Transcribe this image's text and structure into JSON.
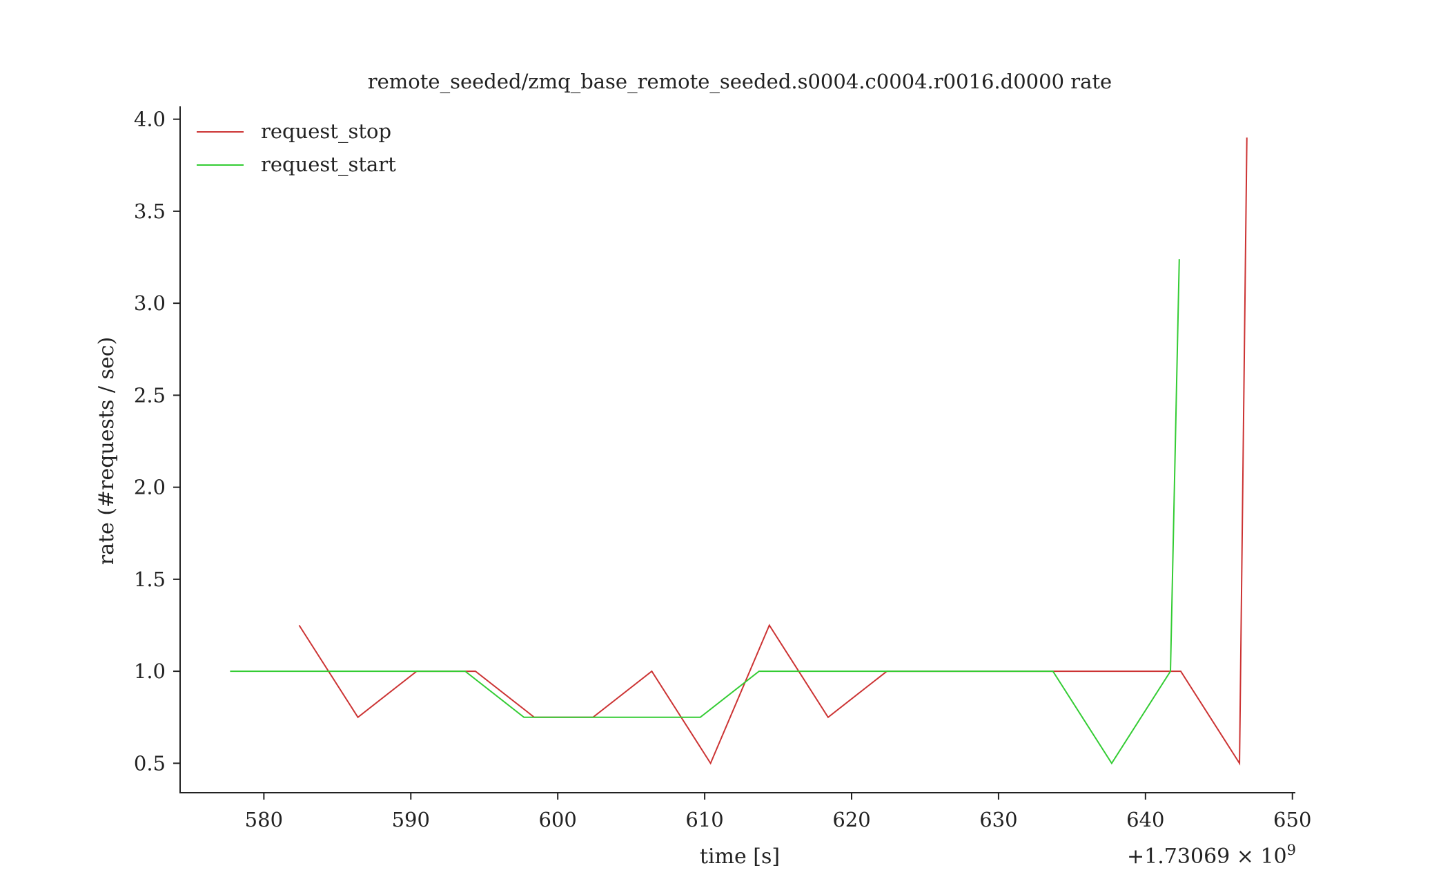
{
  "chart_data": {
    "type": "line",
    "title": "remote_seeded/zmq_base_remote_seeded.s0004.c0004.r0016.d0000 rate",
    "xlabel": "time [s]",
    "ylabel": "rate (#requests / sec)",
    "x_offset_label": "+1.73069 × 10",
    "x_offset_exponent": "9",
    "xlim": [
      574.3,
      650.2
    ],
    "ylim": [
      0.34,
      4.07
    ],
    "x_ticks": [
      580,
      590,
      600,
      610,
      620,
      630,
      640,
      650
    ],
    "x_tick_labels": [
      "580",
      "590",
      "600",
      "610",
      "620",
      "630",
      "640",
      "650"
    ],
    "y_ticks": [
      0.5,
      1.0,
      1.5,
      2.0,
      2.5,
      3.0,
      3.5,
      4.0
    ],
    "y_tick_labels": [
      "0.5",
      "1.0",
      "1.5",
      "2.0",
      "2.5",
      "3.0",
      "3.5",
      "4.0"
    ],
    "grid": false,
    "legend_position": "top-left",
    "series": [
      {
        "name": "request_stop",
        "color": "#cc3333",
        "x": [
          582.4,
          586.4,
          590.4,
          594.4,
          598.4,
          602.4,
          606.4,
          610.4,
          614.4,
          618.4,
          622.4,
          626.4,
          630.4,
          634.4,
          638.4,
          642.4,
          646.4,
          646.9
        ],
        "y": [
          1.25,
          0.75,
          1.0,
          1.0,
          0.75,
          0.75,
          1.0,
          0.5,
          1.25,
          0.75,
          1.0,
          1.0,
          1.0,
          1.0,
          1.0,
          1.0,
          0.5,
          3.9
        ]
      },
      {
        "name": "request_start",
        "color": "#33cc33",
        "x": [
          577.7,
          581.7,
          585.7,
          589.7,
          593.7,
          597.7,
          601.7,
          605.7,
          609.7,
          613.7,
          617.7,
          621.7,
          625.7,
          629.7,
          633.7,
          637.7,
          641.7,
          642.3
        ],
        "y": [
          1.0,
          1.0,
          1.0,
          1.0,
          1.0,
          0.75,
          0.75,
          0.75,
          0.75,
          1.0,
          1.0,
          1.0,
          1.0,
          1.0,
          1.0,
          0.5,
          1.0,
          3.24
        ]
      }
    ]
  }
}
